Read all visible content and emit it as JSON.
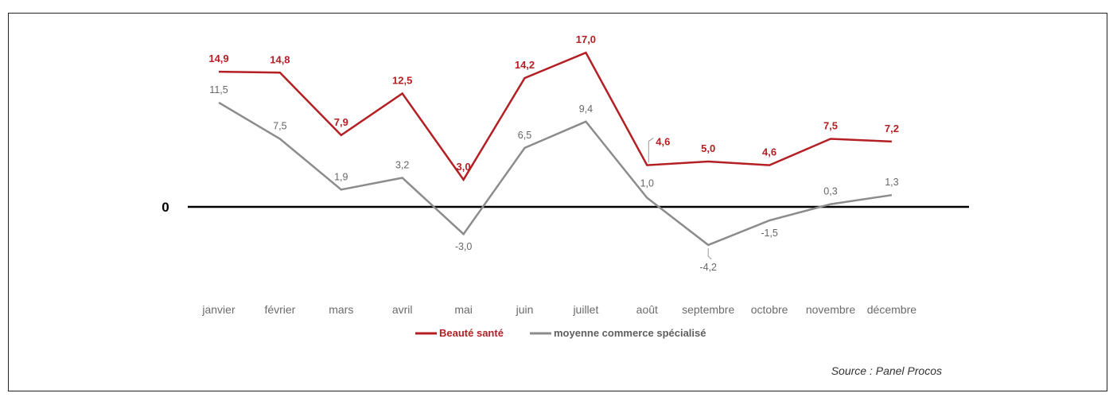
{
  "chart_data": {
    "type": "line",
    "categories": [
      "janvier",
      "février",
      "mars",
      "avril",
      "mai",
      "juin",
      "juillet",
      "août",
      "septembre",
      "octobre",
      "novembre",
      "décembre"
    ],
    "series": [
      {
        "name": "Beauté santé",
        "color": "#b41f24",
        "values": [
          14.9,
          14.8,
          7.9,
          12.5,
          3.0,
          14.2,
          17.0,
          4.6,
          5.0,
          4.6,
          7.5,
          7.2
        ],
        "labels": [
          "14,9",
          "14,8",
          "7,9",
          "12,5",
          "3,0",
          "14,2",
          "17,0",
          "4,6",
          "5,0",
          "4,6",
          "7,5",
          "7,2"
        ]
      },
      {
        "name": "moyenne commerce spécialisé",
        "color": "#8c8c8c",
        "values": [
          11.5,
          7.5,
          1.9,
          3.2,
          -3.0,
          6.5,
          9.4,
          1.0,
          -4.2,
          -1.5,
          0.3,
          1.3
        ],
        "labels": [
          "11,5",
          "7,5",
          "1,9",
          "3,2",
          "-3,0",
          "6,5",
          "9,4",
          "1,0",
          "-4,2",
          "-1,5",
          "0,3",
          "1,3"
        ]
      }
    ],
    "zero_label": "0",
    "legend_position": "bottom",
    "grid": false
  },
  "source": "Source : Panel Procos"
}
